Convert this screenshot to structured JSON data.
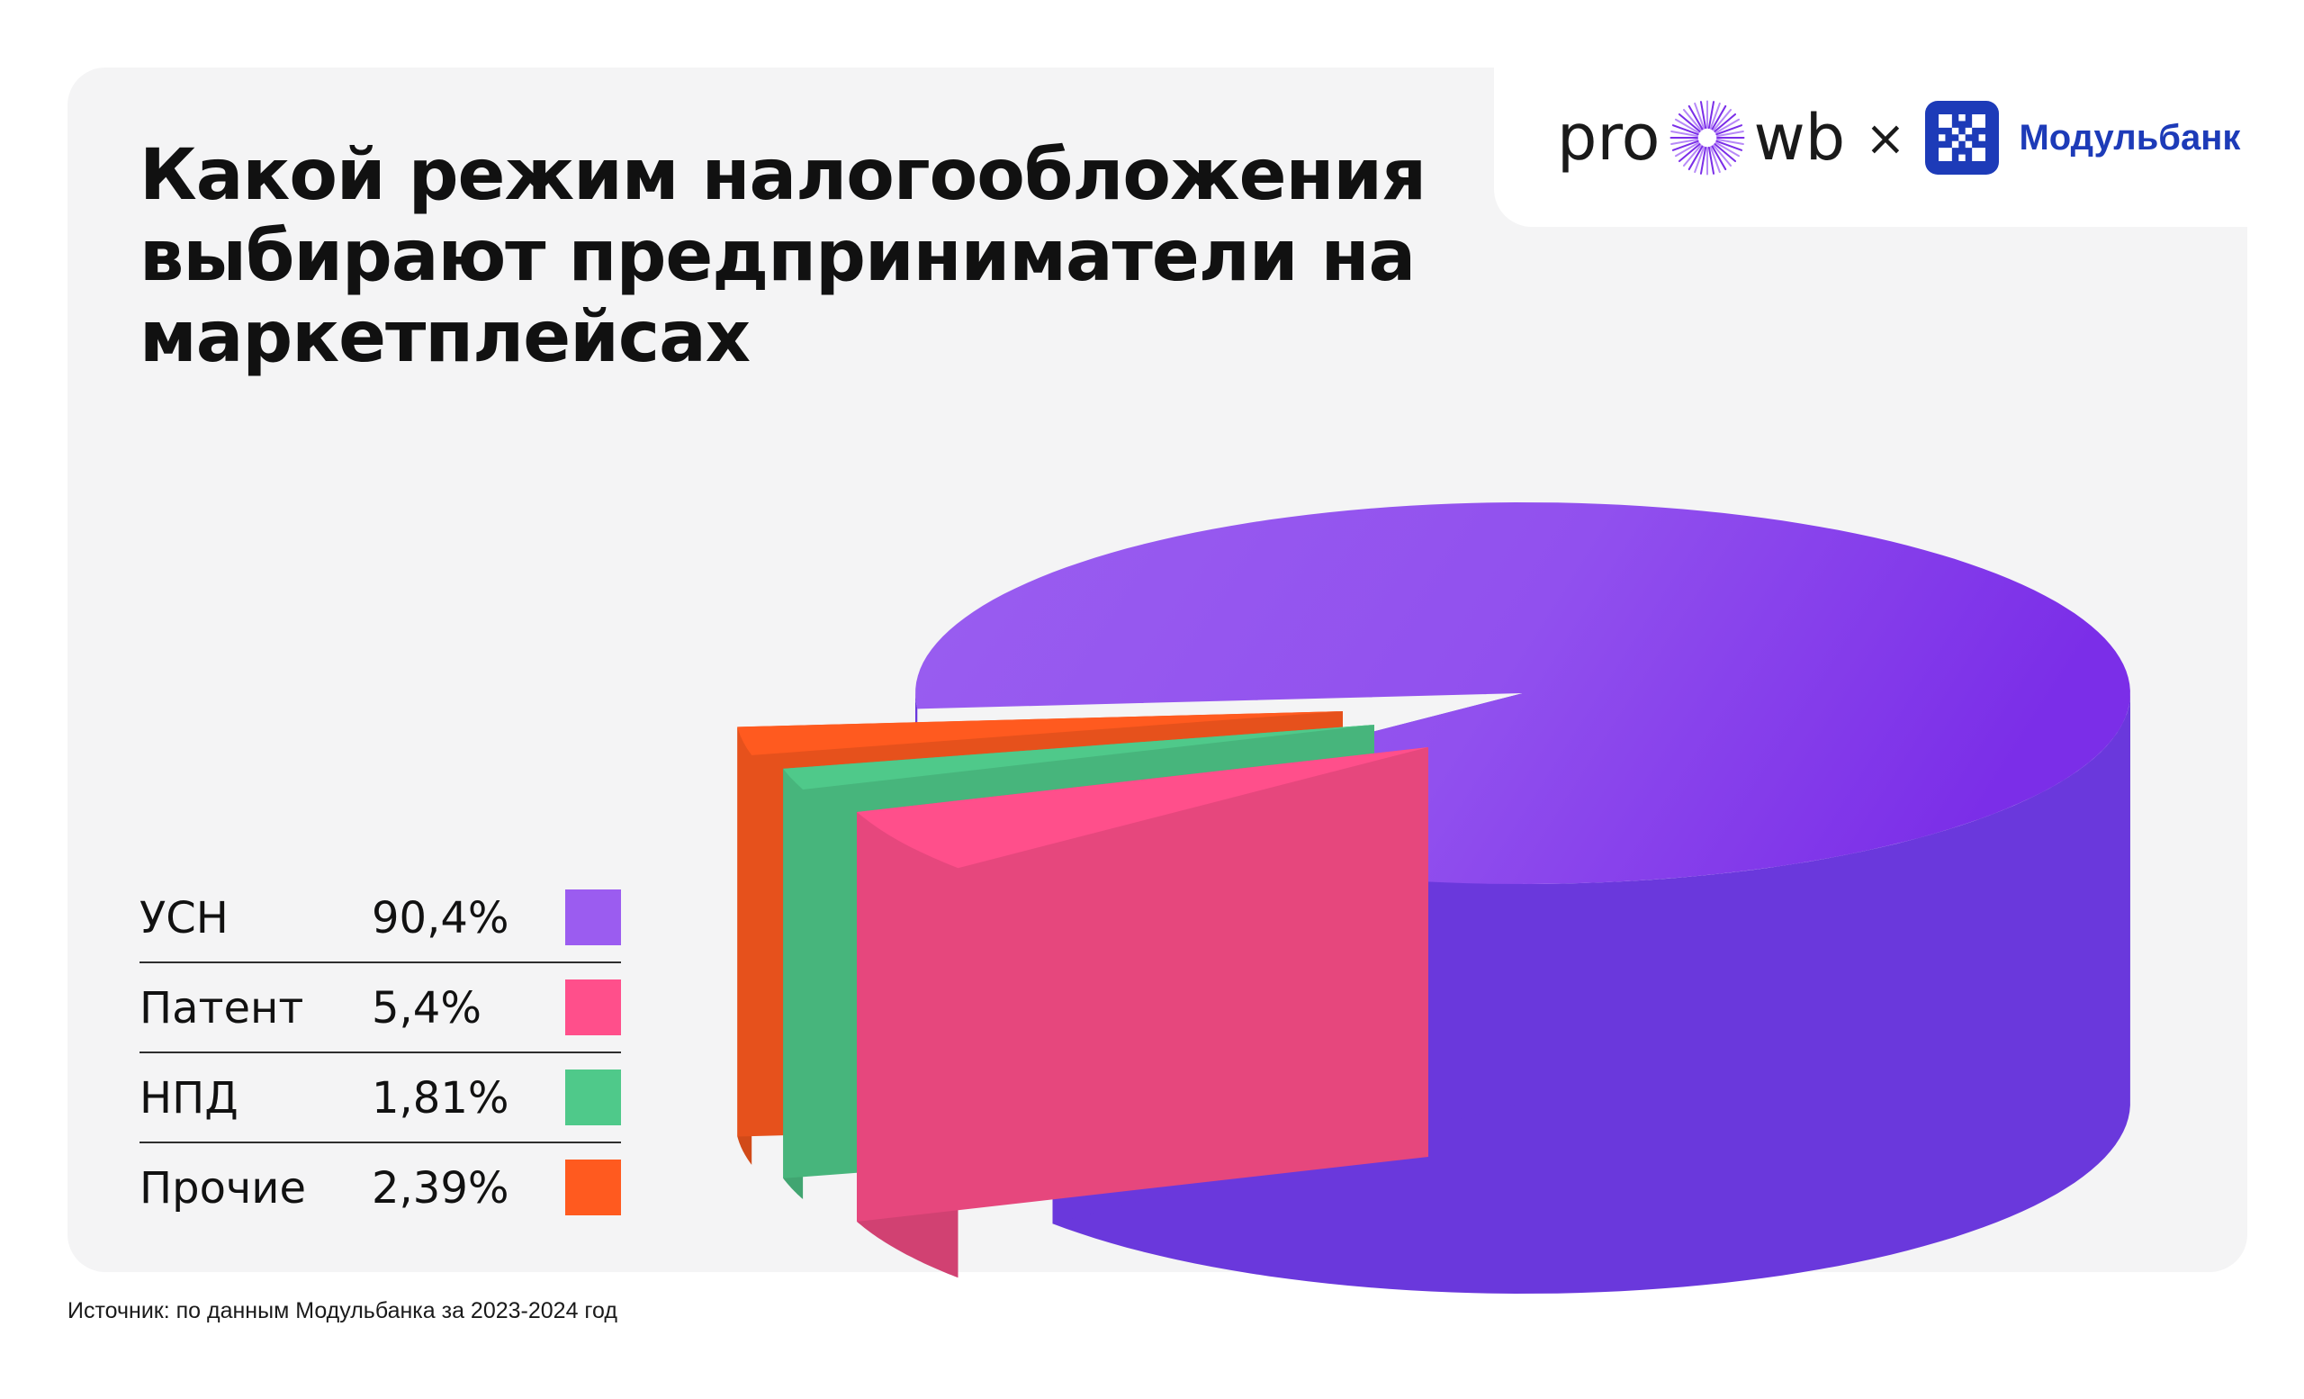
{
  "header": {
    "title": "Какой режим налогообложения выбирают предприниматели на маркетплейсах"
  },
  "logos": {
    "prowb_left": "pro",
    "prowb_right": "wb",
    "separator": "×",
    "partner_name": "Модульбанк",
    "brand_color": "#1d3bb8",
    "icons": [
      "sunburst-icon",
      "modulbank-icon"
    ]
  },
  "chart_data": {
    "type": "pie",
    "style": "3d-exploded",
    "categories": [
      "УСН",
      "Патент",
      "НПД",
      "Прочие"
    ],
    "values": [
      90.4,
      5.4,
      1.81,
      2.39
    ],
    "value_labels": [
      "90,4%",
      "5,4%",
      "1,81%",
      "2,39%"
    ],
    "colors": [
      "#9b5cf0",
      "#ff4f8b",
      "#4fc98a",
      "#ff5a1f"
    ],
    "legend_position": "bottom-left"
  },
  "legend": [
    {
      "name": "УСН",
      "value": "90,4%",
      "color": "#9b5cf0"
    },
    {
      "name": "Патент",
      "value": "5,4%",
      "color": "#ff4f8b"
    },
    {
      "name": "НПД",
      "value": "1,81%",
      "color": "#4fc98a"
    },
    {
      "name": "Прочие",
      "value": "2,39%",
      "color": "#ff5a1f"
    }
  ],
  "footer": {
    "source": "Источник: по данным Модульбанка за 2023-2024 год"
  }
}
